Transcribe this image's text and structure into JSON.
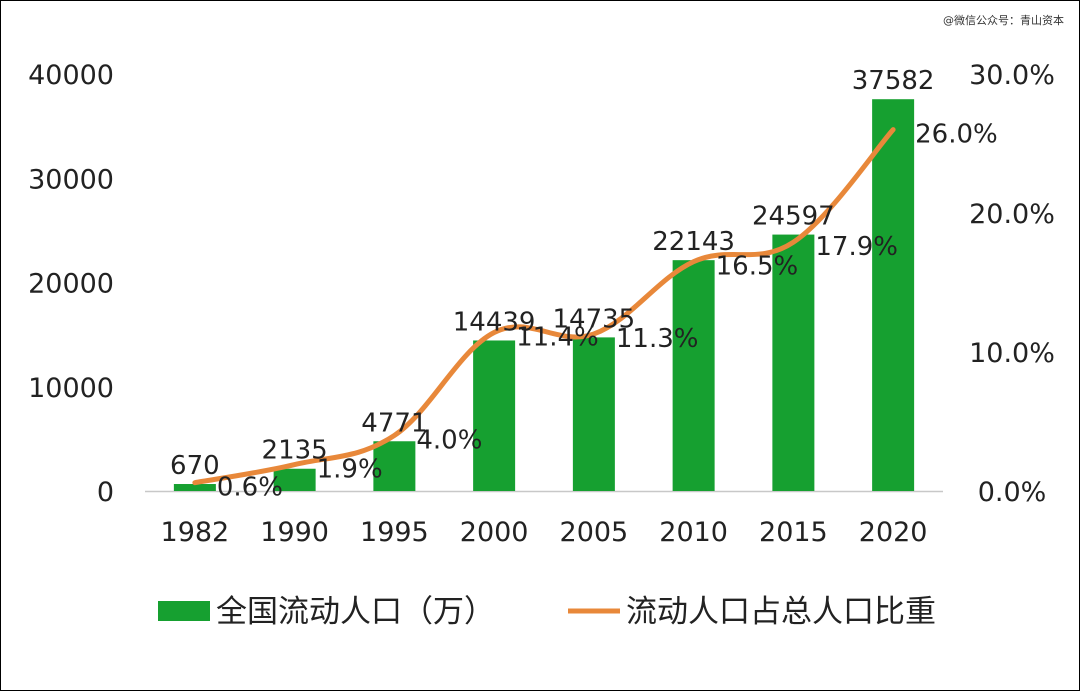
{
  "watermark": "@微信公众号：青山资本",
  "colors": {
    "bar": "#16a030",
    "line": "#e8883a",
    "axis": "#c8c8c8",
    "text": "#222222"
  },
  "chart_data": {
    "type": "bar",
    "categories": [
      "1982",
      "1990",
      "1995",
      "2000",
      "2005",
      "2010",
      "2015",
      "2020"
    ],
    "series": [
      {
        "name": "全国流动人口（万）",
        "type": "bar",
        "axis": "left",
        "values": [
          670,
          2135,
          4771,
          14439,
          14735,
          22143,
          24597,
          37582
        ],
        "labels": [
          "670",
          "2135",
          "4771",
          "14439",
          "14735",
          "22143",
          "24597",
          "37582"
        ]
      },
      {
        "name": "流动人口占总人口比重",
        "type": "line",
        "axis": "right",
        "values": [
          0.6,
          1.9,
          4.0,
          11.4,
          11.3,
          16.5,
          17.9,
          26.0
        ],
        "labels": [
          "0.6%",
          "1.9%",
          "4.0%",
          "11.4%",
          "11.3%",
          "16.5%",
          "17.9%",
          "26.0%"
        ]
      }
    ],
    "y_left": {
      "ticks": [
        "0",
        "10000",
        "20000",
        "30000",
        "40000"
      ],
      "ylim": [
        0,
        40000
      ]
    },
    "y_right": {
      "ticks": [
        "0.0%",
        "10.0%",
        "20.0%",
        "30.0%"
      ],
      "ylim": [
        0,
        30
      ]
    },
    "grid": false,
    "legend": {
      "position": "bottom",
      "labels": [
        "全国流动人口（万）",
        "流动人口占总人口比重"
      ]
    }
  }
}
